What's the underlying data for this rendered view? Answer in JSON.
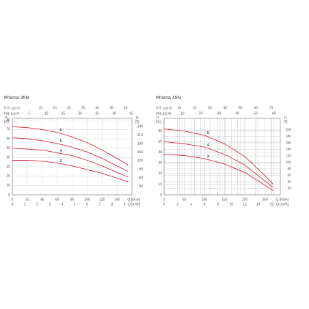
{
  "chart_data": [
    {
      "type": "line",
      "title": "Prisma 35N",
      "grid": "major",
      "ylabel": "H",
      "yunit": "[m]",
      "y2label": "H",
      "y2unit": "[ft]",
      "xlabel": "Q [l/min]",
      "x": [
        0,
        20,
        40,
        60,
        80,
        100,
        120,
        140,
        155
      ],
      "xlim": [
        0,
        160
      ],
      "xticks": [
        0,
        20,
        40,
        60,
        80,
        100,
        120,
        140
      ],
      "ylim": [
        0,
        82
      ],
      "yticks": [
        0,
        10,
        20,
        30,
        40,
        50,
        60,
        70,
        80
      ],
      "y2lim": [
        0,
        269
      ],
      "y2ticks": [
        30,
        60,
        90,
        120,
        150,
        180,
        210,
        240
      ],
      "x2": {
        "label": "Q [m³/h]",
        "lim": [
          0,
          9.6
        ],
        "ticks": [
          0,
          1,
          2,
          3,
          4,
          5,
          6,
          7,
          8,
          9
        ]
      },
      "top_axes": [
        {
          "label": "U.S. g.p.m.",
          "lim": [
            0,
            42.27
          ],
          "ticks": [
            10,
            15,
            20,
            25,
            30,
            35,
            40
          ]
        },
        {
          "label": "Imp g.p.m.",
          "lim": [
            0,
            35.2
          ],
          "ticks": [
            5,
            10,
            15,
            20,
            25,
            30,
            35
          ]
        }
      ],
      "series": [
        {
          "name": "6",
          "color": "#d42a3c",
          "values": [
            73,
            72,
            70,
            67,
            62,
            56,
            48,
            39,
            32
          ]
        },
        {
          "name": "5",
          "color": "#d42a3c",
          "values": [
            61,
            60,
            58,
            55,
            51,
            46,
            39,
            31,
            25
          ]
        },
        {
          "name": "4",
          "color": "#d42a3c",
          "values": [
            50,
            49,
            48,
            45,
            42,
            37,
            31,
            24,
            19
          ]
        },
        {
          "name": "3",
          "color": "#d42a3c",
          "values": [
            37,
            37,
            36,
            34,
            31,
            27,
            23,
            18,
            14
          ]
        }
      ]
    },
    {
      "type": "line",
      "title": "Prisma 45N",
      "grid": "dense",
      "ylabel": "H",
      "yunit": "[m]",
      "y2label": "H",
      "y2unit": "[ft]",
      "xlabel": "Q [l/min]",
      "x": [
        0,
        50,
        100,
        150,
        200,
        250,
        270
      ],
      "xlim": [
        0,
        288
      ],
      "xticks": [
        0,
        50,
        100,
        150,
        200,
        250
      ],
      "ylim": [
        0,
        72
      ],
      "yticks": [
        0,
        10,
        20,
        30,
        40,
        50,
        60
      ],
      "y2lim": [
        0,
        236
      ],
      "y2ticks": [
        20,
        40,
        60,
        80,
        100,
        120,
        140,
        160,
        180,
        200
      ],
      "x2": {
        "label": "Q [m³/h]",
        "lim": [
          0,
          17.28
        ],
        "ticks": [
          0,
          2,
          4,
          6,
          8,
          10,
          12,
          14,
          16
        ]
      },
      "top_axes": [
        {
          "label": "U.S. g.p.m.",
          "lim": [
            0,
            76.1
          ],
          "ticks": [
            10,
            20,
            30,
            40,
            50,
            60,
            70
          ]
        },
        {
          "label": "Imp g.p.m.",
          "lim": [
            0,
            63.4
          ],
          "ticks": [
            10,
            20,
            30,
            40,
            50,
            60
          ]
        }
      ],
      "series": [
        {
          "name": "5",
          "color": "#d42a3c",
          "values": [
            62,
            60,
            56,
            48,
            36,
            18,
            10
          ]
        },
        {
          "name": "4",
          "color": "#d42a3c",
          "values": [
            50,
            48,
            45,
            38,
            28,
            13,
            7
          ]
        },
        {
          "name": "3",
          "color": "#d42a3c",
          "values": [
            38,
            37,
            34,
            29,
            21,
            9,
            4
          ]
        }
      ]
    }
  ]
}
